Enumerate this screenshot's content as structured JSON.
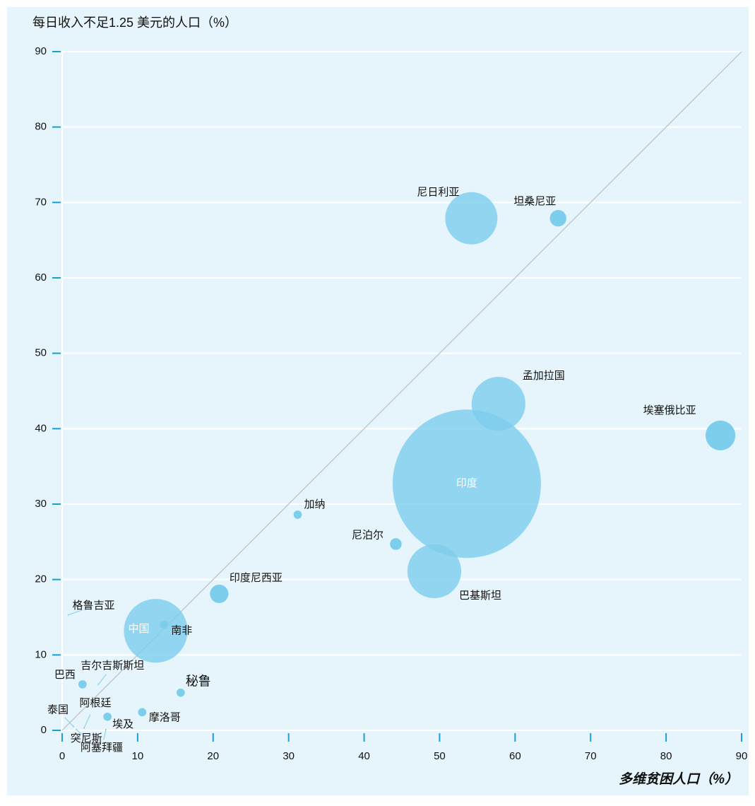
{
  "chart_data": {
    "type": "bubble",
    "title": "每日收入不足1.25 美元的人口（%）",
    "x_label": "多维贫困人口（%）",
    "xlim": [
      0,
      90
    ],
    "ylim": [
      0,
      90
    ],
    "xticks": [
      0,
      10,
      20,
      30,
      40,
      50,
      60,
      70,
      80,
      90
    ],
    "yticks": [
      0,
      10,
      20,
      30,
      40,
      50,
      60,
      70,
      80,
      90
    ],
    "grid": true,
    "color": "#7dcdec",
    "points": [
      {
        "name": "尼日利亚",
        "x": 54.2,
        "y": 67.9,
        "size": 80
      },
      {
        "name": "坦桑尼亚",
        "x": 65.7,
        "y": 67.9,
        "size": 8
      },
      {
        "name": "孟加拉国",
        "x": 57.8,
        "y": 43.3,
        "size": 85
      },
      {
        "name": "埃塞俄比亚",
        "x": 87.2,
        "y": 39.1,
        "size": 26
      },
      {
        "name": "印度",
        "x": 53.6,
        "y": 32.7,
        "size": 645
      },
      {
        "name": "巴基斯坦",
        "x": 49.3,
        "y": 21.1,
        "size": 85
      },
      {
        "name": "尼泊尔",
        "x": 44.2,
        "y": 24.7,
        "size": 4
      },
      {
        "name": "加纳",
        "x": 31.2,
        "y": 28.6,
        "size": 2
      },
      {
        "name": "印度尼西亚",
        "x": 20.8,
        "y": 18.1,
        "size": 10
      },
      {
        "name": "中国",
        "x": 12.4,
        "y": 13.2,
        "size": 119
      },
      {
        "name": "南非",
        "x": 13.5,
        "y": 14.0,
        "size": 2
      },
      {
        "name": "秘鲁",
        "x": 15.7,
        "y": 5.0,
        "size": 2
      },
      {
        "name": "摩洛哥",
        "x": 10.6,
        "y": 2.4,
        "size": 2
      },
      {
        "name": "埃及",
        "x": 6.0,
        "y": 1.8,
        "size": 2
      },
      {
        "name": "巴西",
        "x": 2.7,
        "y": 6.1,
        "size": 2
      },
      {
        "name": "吉尔吉斯斯坦",
        "x": 4.8,
        "y": 6.1,
        "size": 0.05
      },
      {
        "name": "格鲁吉亚",
        "x": 0.8,
        "y": 15.3,
        "size": 0.05
      },
      {
        "name": "泰国",
        "x": 1.5,
        "y": 0.5,
        "size": 0.05
      },
      {
        "name": "阿根廷",
        "x": 2.9,
        "y": 0.3,
        "size": 0.05
      },
      {
        "name": "突尼斯",
        "x": 1.9,
        "y": 0.1,
        "size": 0.05
      },
      {
        "name": "阿塞拜疆",
        "x": 5.8,
        "y": 0.1,
        "size": 0.05
      }
    ]
  }
}
